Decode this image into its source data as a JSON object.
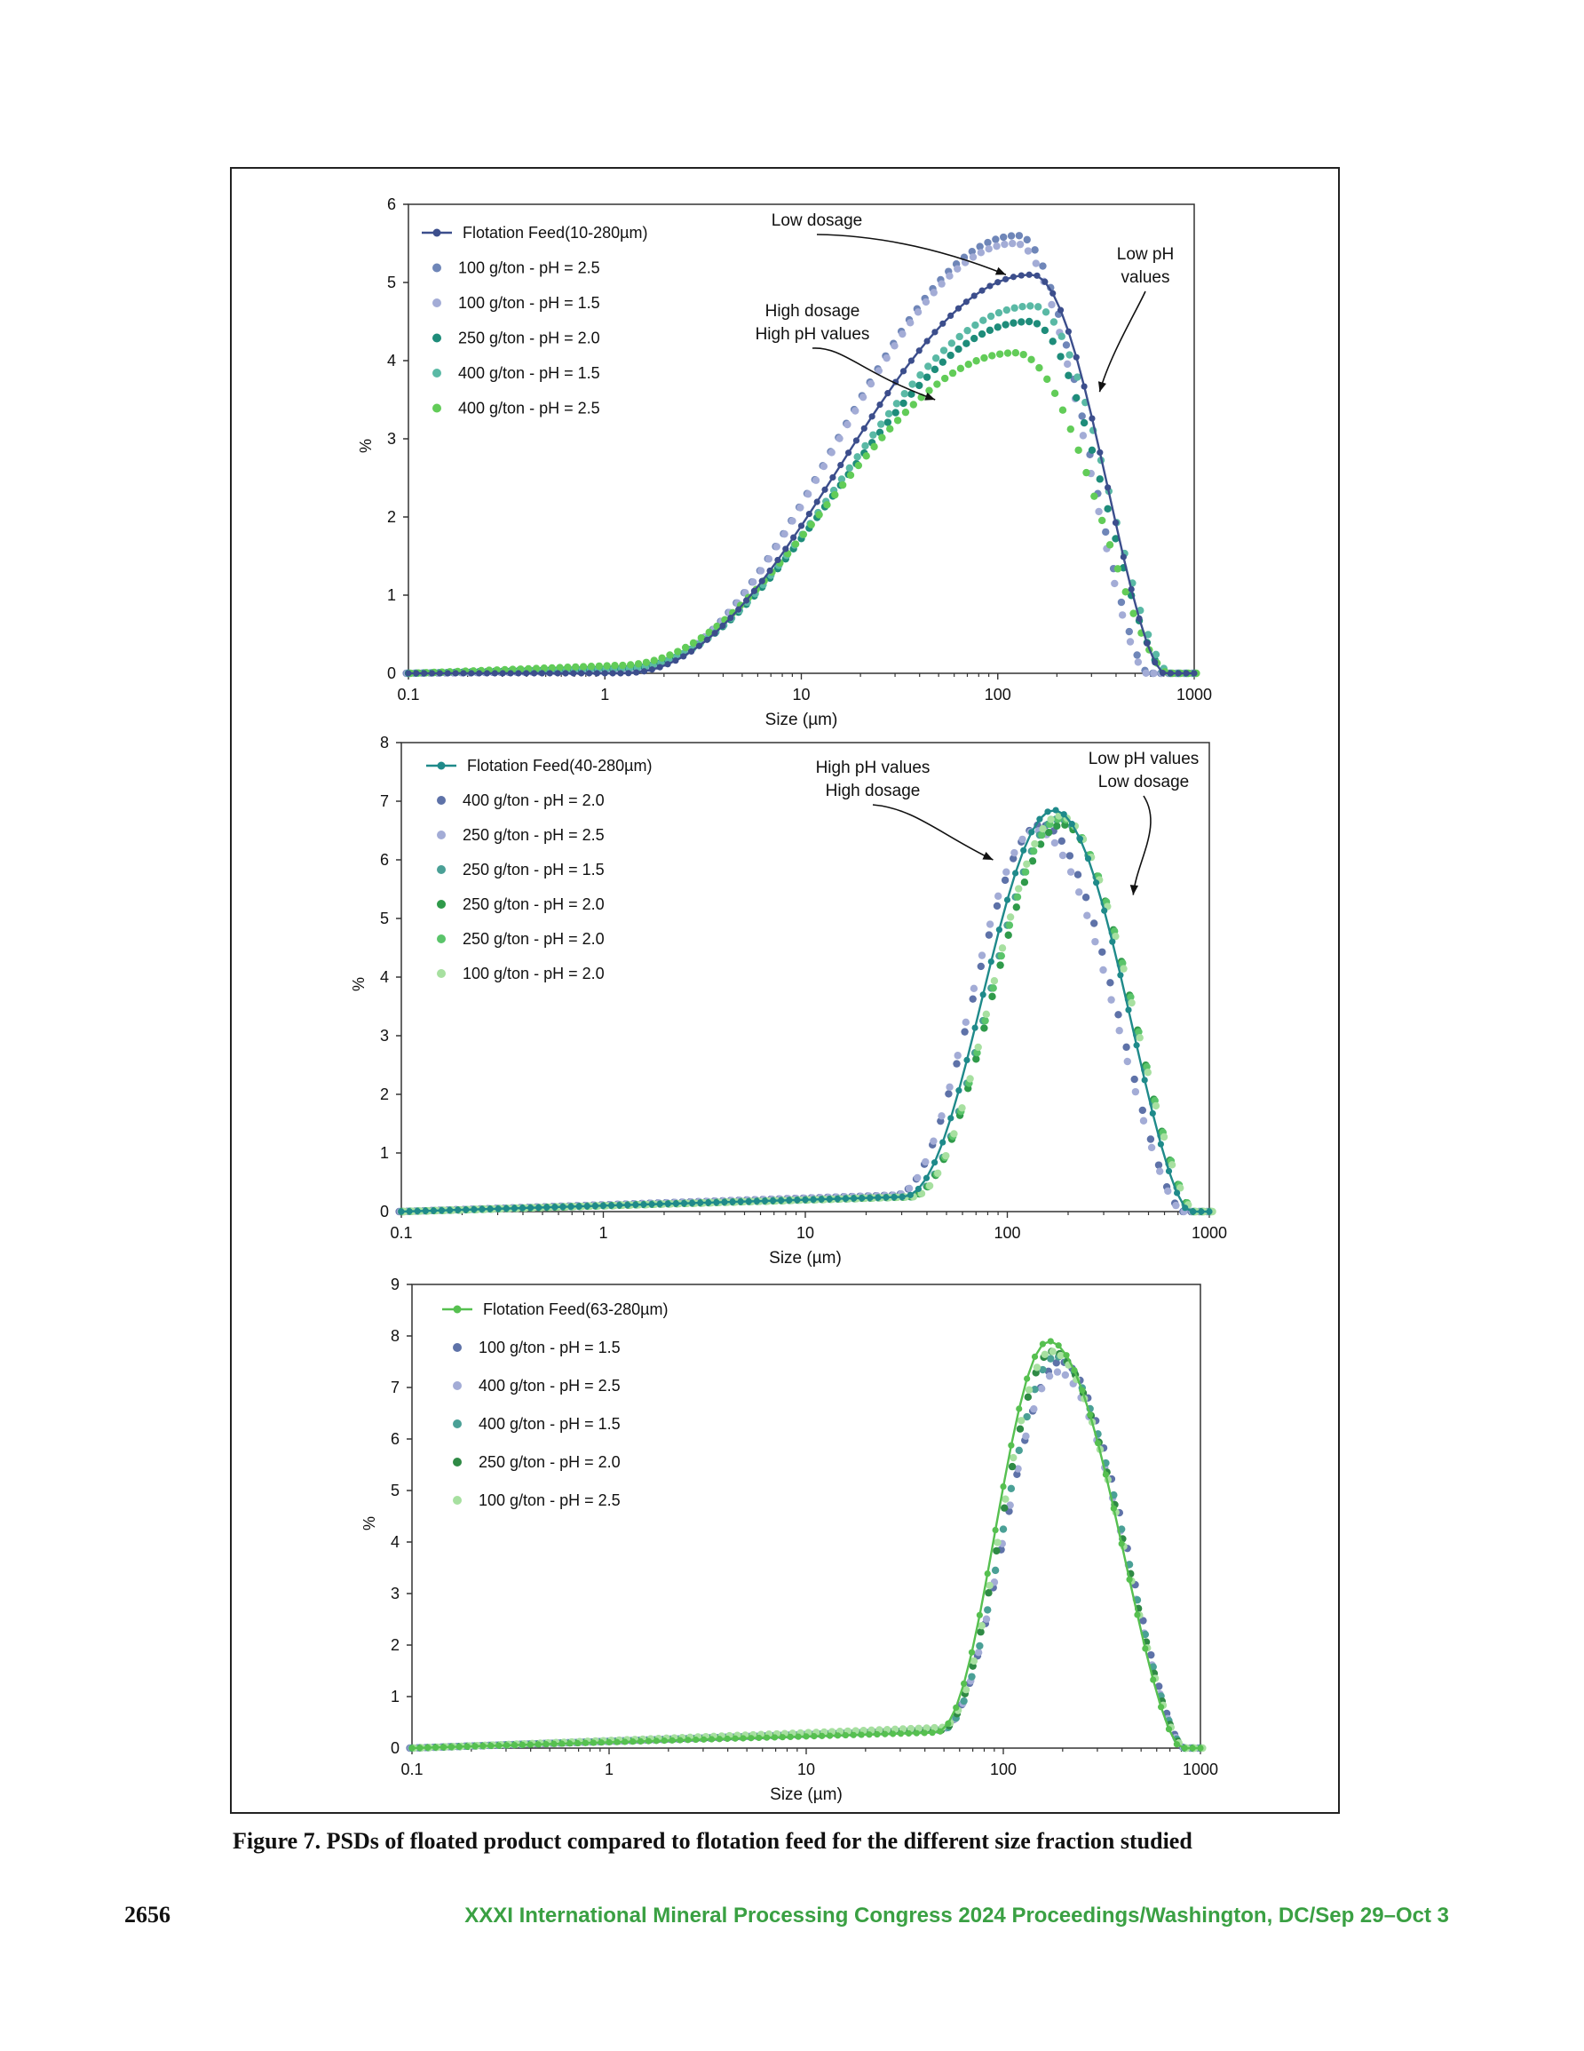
{
  "caption": "Figure 7. PSDs of floated product compared to flotation feed for the different size fraction studied",
  "page_number": "2656",
  "footer": "XXXI International Mineral Processing Congress 2024 Proceedings/Washington, DC/Sep 29–Oct 3",
  "chart_data": [
    {
      "type": "scatter",
      "xscale": "log",
      "xlim": [
        0.1,
        1000
      ],
      "ylim": [
        0,
        6
      ],
      "xticks": [
        "0.1",
        "1",
        "10",
        "100",
        "1000"
      ],
      "yticks": [
        "0",
        "1",
        "2",
        "3",
        "4",
        "5",
        "6"
      ],
      "xlabel": "Size (µm)",
      "ylabel": "%",
      "legend_position": "top-left",
      "feed": {
        "name": "Flotation Feed(10-280µm)",
        "color": "#3c4e8c",
        "peak_x": 150,
        "peak": 5.1,
        "low_x": 1.2,
        "high_x": 700,
        "tail": 0.0
      },
      "series": [
        {
          "name": "100 g/ton - pH = 2.5",
          "color": "#6f86b8",
          "peak_x": 130,
          "peak": 5.6,
          "low_x": 1.3,
          "high_x": 600,
          "tail": 0.03
        },
        {
          "name": "100 g/ton - pH = 1.5",
          "color": "#a3acd6",
          "peak_x": 125,
          "peak": 5.5,
          "low_x": 1.3,
          "high_x": 580,
          "tail": 0.03
        },
        {
          "name": "250 g/ton - pH = 2.0",
          "color": "#1e8c7a",
          "peak_x": 145,
          "peak": 4.5,
          "low_x": 1.2,
          "high_x": 720,
          "tail": 0.06
        },
        {
          "name": "400 g/ton - pH = 1.5",
          "color": "#5ab9a5",
          "peak_x": 150,
          "peak": 4.7,
          "low_x": 1.2,
          "high_x": 740,
          "tail": 0.06
        },
        {
          "name": "400 g/ton - pH = 2.5",
          "color": "#62cc58",
          "peak_x": 120,
          "peak": 4.1,
          "low_x": 1.1,
          "high_x": 720,
          "tail": 0.1
        }
      ],
      "annotations": [
        {
          "text": [
            "Low dosage"
          ],
          "arrow_to": [
            110,
            5.1
          ]
        },
        {
          "text": [
            "Low pH",
            "values"
          ],
          "arrow_to": [
            330,
            3.6
          ]
        },
        {
          "text": [
            "High dosage",
            "High pH values"
          ],
          "arrow_to": [
            48,
            3.5
          ]
        }
      ]
    },
    {
      "type": "scatter",
      "xscale": "log",
      "xlim": [
        0.1,
        1000
      ],
      "ylim": [
        0,
        8
      ],
      "xticks": [
        "0.1",
        "1",
        "10",
        "100",
        "1000"
      ],
      "yticks": [
        "0",
        "1",
        "2",
        "3",
        "4",
        "5",
        "6",
        "7",
        "8"
      ],
      "xlabel": "Size (µm)",
      "ylabel": "%",
      "legend_position": "top-left",
      "feed": {
        "name": "Flotation Feed(40-280µm)",
        "color": "#1f8a8a",
        "peak_x": 170,
        "peak": 6.85,
        "low_x": 30,
        "high_x": 800,
        "tail": 0.25
      },
      "series": [
        {
          "name": "400 g/ton - pH = 2.0",
          "color": "#5e72a8",
          "peak_x": 150,
          "peak": 6.6,
          "low_x": 28,
          "high_x": 760,
          "tail": 0.28
        },
        {
          "name": "250 g/ton - pH = 2.5",
          "color": "#a3acd6",
          "peak_x": 140,
          "peak": 6.5,
          "low_x": 28,
          "high_x": 750,
          "tail": 0.28
        },
        {
          "name": "250 g/ton - pH = 1.5",
          "color": "#4aa096",
          "peak_x": 180,
          "peak": 6.7,
          "low_x": 32,
          "high_x": 820,
          "tail": 0.25
        },
        {
          "name": "250 g/ton - pH = 2.0",
          "color": "#2f9a4a",
          "peak_x": 185,
          "peak": 6.6,
          "low_x": 32,
          "high_x": 830,
          "tail": 0.25
        },
        {
          "name": "250 g/ton - pH = 2.0",
          "color": "#5ac46a",
          "peak_x": 180,
          "peak": 6.7,
          "low_x": 32,
          "high_x": 830,
          "tail": 0.25
        },
        {
          "name": "100 g/ton - pH = 2.0",
          "color": "#a7e0a0",
          "peak_x": 175,
          "peak": 6.75,
          "low_x": 32,
          "high_x": 820,
          "tail": 0.25
        }
      ],
      "annotations": [
        {
          "text": [
            "High pH values",
            "High dosage"
          ],
          "arrow_to": [
            85,
            6.0
          ]
        },
        {
          "text": [
            "Low pH values",
            "Low dosage"
          ],
          "arrow_to": [
            420,
            5.4
          ]
        }
      ]
    },
    {
      "type": "scatter",
      "xscale": "log",
      "xlim": [
        0.1,
        1000
      ],
      "ylim": [
        0,
        9
      ],
      "xticks": [
        "0.1",
        "1",
        "10",
        "100",
        "1000"
      ],
      "yticks": [
        "0",
        "1",
        "2",
        "3",
        "4",
        "5",
        "6",
        "7",
        "8",
        "9"
      ],
      "xlabel": "Size (µm)",
      "ylabel": "%",
      "legend_position": "top-left",
      "feed": {
        "name": "Flotation Feed(63-280µm)",
        "color": "#56c050",
        "peak_x": 170,
        "peak": 7.9,
        "low_x": 45,
        "high_x": 800,
        "tail": 0.3
      },
      "series": [
        {
          "name": "100 g/ton - pH = 1.5",
          "color": "#5e72a8",
          "peak_x": 200,
          "peak": 7.5,
          "low_x": 48,
          "high_x": 850,
          "tail": 0.35
        },
        {
          "name": "400 g/ton - pH = 2.5",
          "color": "#a3acd6",
          "peak_x": 190,
          "peak": 7.3,
          "low_x": 48,
          "high_x": 840,
          "tail": 0.35
        },
        {
          "name": "400 g/ton - pH = 1.5",
          "color": "#4aa096",
          "peak_x": 185,
          "peak": 7.6,
          "low_x": 48,
          "high_x": 830,
          "tail": 0.35
        },
        {
          "name": "250 g/ton - pH = 2.0",
          "color": "#2f8a45",
          "peak_x": 175,
          "peak": 7.7,
          "low_x": 47,
          "high_x": 820,
          "tail": 0.35
        },
        {
          "name": "100 g/ton - pH = 2.5",
          "color": "#a7e0a0",
          "peak_x": 170,
          "peak": 7.7,
          "low_x": 47,
          "high_x": 810,
          "tail": 0.4
        }
      ],
      "annotations": []
    }
  ]
}
